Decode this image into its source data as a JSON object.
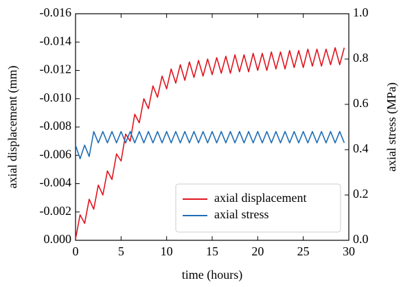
{
  "chart_data": {
    "type": "line",
    "xlabel": "time (hours)",
    "ylabel": "axial displacement (mm)",
    "y2label": "axial stress (MPa)",
    "x": [
      0,
      0.5,
      1,
      1.5,
      2,
      2.5,
      3,
      3.5,
      4,
      4.5,
      5,
      5.5,
      6,
      6.5,
      7,
      7.5,
      8,
      8.5,
      9,
      9.5,
      10,
      10.5,
      11,
      11.5,
      12,
      12.5,
      13,
      13.5,
      14,
      14.5,
      15,
      15.5,
      16,
      16.5,
      17,
      17.5,
      18,
      18.5,
      19,
      19.5,
      20,
      20.5,
      21,
      21.5,
      22,
      22.5,
      23,
      23.5,
      24,
      24.5,
      25,
      25.5,
      26,
      26.5,
      27,
      27.5,
      28,
      28.5,
      29,
      29.5
    ],
    "series": [
      {
        "name": "axial displacement",
        "color": "#e0141e",
        "axis": "y",
        "values": [
          -0.0001,
          -0.0018,
          -0.0012,
          -0.0029,
          -0.0022,
          -0.0039,
          -0.0032,
          -0.0049,
          -0.0043,
          -0.0061,
          -0.0056,
          -0.0075,
          -0.007,
          -0.0089,
          -0.0083,
          -0.01,
          -0.0093,
          -0.0109,
          -0.0101,
          -0.0116,
          -0.0107,
          -0.0121,
          -0.0111,
          -0.0124,
          -0.0113,
          -0.0126,
          -0.0115,
          -0.0127,
          -0.0116,
          -0.0128,
          -0.0117,
          -0.0129,
          -0.0118,
          -0.013,
          -0.0118,
          -0.0131,
          -0.0119,
          -0.0131,
          -0.0119,
          -0.0132,
          -0.012,
          -0.0132,
          -0.012,
          -0.0133,
          -0.0121,
          -0.0133,
          -0.0121,
          -0.0134,
          -0.0122,
          -0.0134,
          -0.0122,
          -0.0135,
          -0.0123,
          -0.0135,
          -0.0123,
          -0.0135,
          -0.0124,
          -0.0136,
          -0.0124,
          -0.0136
        ]
      },
      {
        "name": "axial stress",
        "color": "#1f6db5",
        "axis": "y2",
        "values": [
          0.42,
          0.36,
          0.42,
          0.37,
          0.48,
          0.43,
          0.48,
          0.43,
          0.48,
          0.43,
          0.48,
          0.43,
          0.48,
          0.43,
          0.48,
          0.43,
          0.48,
          0.43,
          0.48,
          0.43,
          0.48,
          0.43,
          0.48,
          0.43,
          0.48,
          0.43,
          0.48,
          0.43,
          0.48,
          0.43,
          0.48,
          0.43,
          0.48,
          0.43,
          0.48,
          0.43,
          0.48,
          0.43,
          0.48,
          0.43,
          0.48,
          0.43,
          0.48,
          0.43,
          0.48,
          0.43,
          0.48,
          0.43,
          0.48,
          0.43,
          0.48,
          0.43,
          0.48,
          0.43,
          0.48,
          0.43,
          0.48,
          0.43,
          0.48,
          0.43
        ]
      }
    ],
    "xlim": [
      0,
      30
    ],
    "xticks": [
      0,
      5,
      10,
      15,
      20,
      25,
      30
    ],
    "ylim": [
      0,
      -0.016
    ],
    "yticks": [
      {
        "value": 0,
        "label": "0.000"
      },
      -0.002,
      -0.004,
      -0.006,
      -0.008,
      {
        "value": -0.01,
        "label": "-0.010"
      },
      -0.012,
      -0.014,
      -0.016
    ],
    "y2lim": [
      0,
      1
    ],
    "y2ticks": [
      {
        "value": 0,
        "label": "0.0"
      },
      0.2,
      0.4,
      0.6,
      0.8,
      {
        "value": 1,
        "label": "1.0"
      }
    ],
    "legend": "lower right",
    "grid": false
  }
}
